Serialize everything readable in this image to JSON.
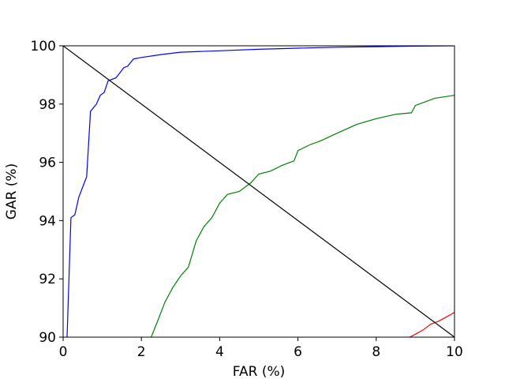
{
  "chart_data": {
    "type": "line",
    "title": "",
    "xlabel": "FAR (%)",
    "ylabel": "GAR (%)",
    "xlim": [
      0,
      10
    ],
    "ylim": [
      90,
      100
    ],
    "xticks": [
      0,
      2,
      4,
      6,
      8,
      10
    ],
    "yticks": [
      90,
      92,
      94,
      96,
      98,
      100
    ],
    "grid": false,
    "series": [
      {
        "color": "#0000ff",
        "x": [
          0.1,
          0.2,
          0.3,
          0.4,
          0.6,
          0.7,
          0.85,
          0.95,
          1.05,
          1.15,
          1.35,
          1.55,
          1.65,
          1.8,
          2.0,
          2.5,
          3.0,
          4.0,
          5.0,
          6.0,
          7.0,
          8.0,
          9.0,
          10.0
        ],
        "y": [
          90.0,
          94.1,
          94.2,
          94.8,
          95.5,
          97.75,
          98.0,
          98.3,
          98.4,
          98.8,
          98.9,
          99.25,
          99.3,
          99.55,
          99.6,
          99.7,
          99.78,
          99.83,
          99.88,
          99.92,
          99.95,
          99.97,
          99.99,
          100.0
        ]
      },
      {
        "color": "#008000",
        "x": [
          2.25,
          2.4,
          2.6,
          2.8,
          3.0,
          3.2,
          3.4,
          3.6,
          3.8,
          4.0,
          4.2,
          4.5,
          4.8,
          5.0,
          5.3,
          5.6,
          5.9,
          6.0,
          6.3,
          6.6,
          7.0,
          7.5,
          8.0,
          8.5,
          8.9,
          9.0,
          9.5,
          10.0
        ],
        "y": [
          90.0,
          90.5,
          91.2,
          91.7,
          92.1,
          92.4,
          93.3,
          93.8,
          94.1,
          94.6,
          94.9,
          95.0,
          95.3,
          95.6,
          95.7,
          95.9,
          96.05,
          96.4,
          96.6,
          96.75,
          97.0,
          97.3,
          97.5,
          97.65,
          97.7,
          97.95,
          98.2,
          98.3
        ]
      },
      {
        "color": "#ff0000",
        "x": [
          8.85,
          9.0,
          9.2,
          9.4,
          9.6,
          9.8,
          10.0
        ],
        "y": [
          90.0,
          90.1,
          90.25,
          90.45,
          90.55,
          90.7,
          90.85
        ]
      },
      {
        "color": "#000000",
        "x": [
          0,
          10
        ],
        "y": [
          100,
          90
        ]
      }
    ]
  }
}
